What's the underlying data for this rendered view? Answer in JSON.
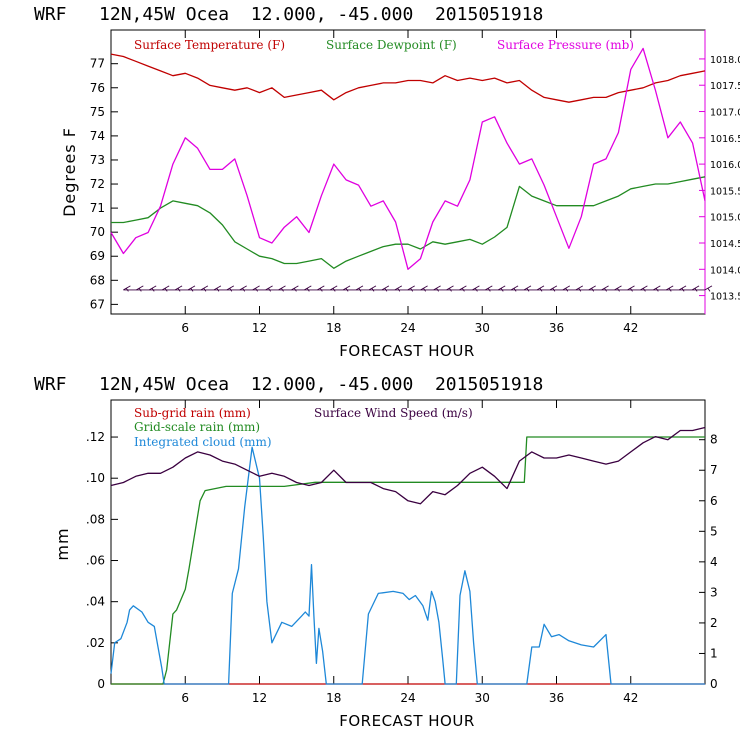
{
  "colors": {
    "temperature": "#c00000",
    "dewpoint": "#228b22",
    "pressure": "#e000e0",
    "subgrid_rain": "#c00000",
    "grid_rain": "#228b22",
    "cloud": "#1e88d8",
    "wind": "#3a0040",
    "axis": "#000000"
  },
  "chart_data": [
    {
      "type": "line",
      "header": "WRF   12N,45W Ocea  12.000, -45.000  2015051918",
      "xlabel": "FORECAST HOUR",
      "ylabel": "Degrees F",
      "xlim": [
        0,
        48
      ],
      "ylim": [
        66.6,
        78.4
      ],
      "xticks": [
        "6",
        "12",
        "18",
        "24",
        "30",
        "36",
        "42"
      ],
      "yticks": [
        "67",
        "68",
        "69",
        "70",
        "71",
        "72",
        "73",
        "74",
        "75",
        "76",
        "77"
      ],
      "y2lim": [
        1013.15,
        1018.55
      ],
      "y2ticks": [
        "1013.5",
        "1014.0",
        "1014.5",
        "1015.0",
        "1015.5",
        "1016.0",
        "1016.5",
        "1017.0",
        "1017.5",
        "1018.0"
      ],
      "series": [
        {
          "name": "Surface Temperature (F)",
          "axis": "left",
          "x": [
            0,
            1,
            2,
            3,
            4,
            5,
            6,
            7,
            8,
            9,
            10,
            11,
            12,
            13,
            14,
            15,
            16,
            17,
            18,
            19,
            20,
            21,
            22,
            23,
            24,
            25,
            26,
            27,
            28,
            29,
            30,
            31,
            32,
            33,
            34,
            35,
            36,
            37,
            38,
            39,
            40,
            41,
            42,
            43,
            44,
            45,
            46,
            47,
            48
          ],
          "y": [
            77.4,
            77.3,
            77.1,
            76.9,
            76.7,
            76.5,
            76.6,
            76.4,
            76.1,
            76.0,
            75.9,
            76.0,
            75.8,
            76.0,
            75.6,
            75.7,
            75.8,
            75.9,
            75.5,
            75.8,
            76.0,
            76.1,
            76.2,
            76.2,
            76.3,
            76.3,
            76.2,
            76.5,
            76.3,
            76.4,
            76.3,
            76.4,
            76.2,
            76.3,
            75.9,
            75.6,
            75.5,
            75.4,
            75.5,
            75.6,
            75.6,
            75.8,
            75.9,
            76.0,
            76.2,
            76.3,
            76.5,
            76.6,
            76.7
          ]
        },
        {
          "name": "Surface Dewpoint (F)",
          "axis": "left",
          "x": [
            0,
            1,
            2,
            3,
            4,
            5,
            6,
            7,
            8,
            9,
            10,
            11,
            12,
            13,
            14,
            15,
            16,
            17,
            18,
            19,
            20,
            21,
            22,
            23,
            24,
            25,
            26,
            27,
            28,
            29,
            30,
            31,
            32,
            33,
            34,
            35,
            36,
            37,
            38,
            39,
            40,
            41,
            42,
            43,
            44,
            45,
            46,
            47,
            48
          ],
          "y": [
            70.4,
            70.4,
            70.5,
            70.6,
            71.0,
            71.3,
            71.2,
            71.1,
            70.8,
            70.3,
            69.6,
            69.3,
            69.0,
            68.9,
            68.7,
            68.7,
            68.8,
            68.9,
            68.5,
            68.8,
            69.0,
            69.2,
            69.4,
            69.5,
            69.5,
            69.3,
            69.6,
            69.5,
            69.6,
            69.7,
            69.5,
            69.8,
            70.2,
            71.9,
            71.5,
            71.3,
            71.1,
            71.1,
            71.1,
            71.1,
            71.3,
            71.5,
            71.8,
            71.9,
            72.0,
            72.0,
            72.1,
            72.2,
            72.3
          ]
        },
        {
          "name": "Surface Pressure (mb)",
          "axis": "right",
          "x": [
            0,
            1,
            2,
            3,
            4,
            5,
            6,
            7,
            8,
            9,
            10,
            11,
            12,
            13,
            14,
            15,
            16,
            17,
            18,
            19,
            20,
            21,
            22,
            23,
            24,
            25,
            26,
            27,
            28,
            29,
            30,
            31,
            32,
            33,
            34,
            35,
            36,
            37,
            38,
            39,
            40,
            41,
            42,
            43,
            44,
            45,
            46,
            47,
            48
          ],
          "y": [
            1014.7,
            1014.3,
            1014.6,
            1014.7,
            1015.2,
            1016.0,
            1016.5,
            1016.3,
            1015.9,
            1015.9,
            1016.1,
            1015.4,
            1014.6,
            1014.5,
            1014.8,
            1015.0,
            1014.7,
            1015.4,
            1016.0,
            1015.7,
            1015.6,
            1015.2,
            1015.3,
            1014.9,
            1014.0,
            1014.2,
            1014.9,
            1015.3,
            1015.2,
            1015.7,
            1016.8,
            1016.9,
            1016.4,
            1016.0,
            1016.1,
            1015.6,
            1015.0,
            1014.4,
            1015.0,
            1016.0,
            1016.1,
            1016.6,
            1017.8,
            1018.2,
            1017.4,
            1016.5,
            1016.8,
            1016.4,
            1015.3
          ]
        }
      ],
      "wind_barbs": {
        "x_start": 1,
        "x_end": 48,
        "y_level": 67.6,
        "count": 46
      }
    },
    {
      "type": "line",
      "header": "WRF   12N,45W Ocea  12.000, -45.000  2015051918",
      "xlabel": "FORECAST HOUR",
      "ylabel": "mm",
      "xlim": [
        0,
        48
      ],
      "ylim": [
        0,
        0.138
      ],
      "xticks": [
        "6",
        "12",
        "18",
        "24",
        "30",
        "36",
        "42"
      ],
      "yticks": [
        "0",
        ".02",
        ".04",
        ".06",
        ".08",
        ".10",
        ".12"
      ],
      "y2lim": [
        0,
        9.3
      ],
      "y2ticks": [
        "0",
        "1",
        "2",
        "3",
        "4",
        "5",
        "6",
        "7",
        "8"
      ],
      "series": [
        {
          "name": "Sub-grid rain (mm)",
          "axis": "left",
          "x": [
            0,
            48
          ],
          "y": [
            0,
            0
          ]
        },
        {
          "name": "Grid-scale rain (mm)",
          "axis": "left",
          "x": [
            0,
            4.2,
            4.5,
            5.0,
            5.3,
            6.0,
            6.3,
            6.9,
            7.2,
            7.6,
            9.3,
            14.0,
            16.5,
            33.4,
            33.6,
            48
          ],
          "y": [
            0,
            0,
            0.007,
            0.034,
            0.036,
            0.046,
            0.056,
            0.078,
            0.089,
            0.094,
            0.096,
            0.096,
            0.098,
            0.098,
            0.12,
            0.12
          ]
        },
        {
          "name": "Integrated cloud (mm)",
          "axis": "left",
          "x": [
            0,
            0.3,
            0.8,
            1.3,
            1.5,
            1.8,
            2.5,
            3.0,
            3.5,
            3.8,
            4.1,
            4.3,
            9.5,
            9.8,
            10.3,
            10.8,
            11.4,
            12.0,
            12.3,
            12.6,
            13.0,
            13.8,
            14.6,
            15.4,
            15.7,
            16.0,
            16.2,
            16.4,
            16.6,
            16.8,
            17.1,
            17.4,
            20.3,
            20.8,
            21.6,
            22.8,
            23.6,
            24.1,
            24.6,
            25.2,
            25.6,
            25.9,
            26.2,
            26.5,
            26.8,
            27.0,
            27.9,
            28.2,
            28.6,
            29.0,
            29.3,
            29.6,
            33.6,
            34.0,
            34.6,
            35.0,
            35.6,
            36.2,
            37.0,
            38.0,
            39.0,
            40.0,
            40.4,
            48
          ],
          "y": [
            0.005,
            0.02,
            0.022,
            0.03,
            0.036,
            0.038,
            0.035,
            0.03,
            0.028,
            0.018,
            0.008,
            0,
            0,
            0.044,
            0.056,
            0.086,
            0.115,
            0.1,
            0.072,
            0.04,
            0.02,
            0.03,
            0.028,
            0.033,
            0.035,
            0.033,
            0.058,
            0.033,
            0.01,
            0.027,
            0.016,
            0,
            0,
            0.034,
            0.044,
            0.045,
            0.044,
            0.041,
            0.043,
            0.038,
            0.031,
            0.045,
            0.04,
            0.03,
            0.012,
            0,
            0,
            0.043,
            0.055,
            0.045,
            0.02,
            0,
            0,
            0.018,
            0.018,
            0.029,
            0.023,
            0.024,
            0.021,
            0.019,
            0.018,
            0.024,
            0,
            0
          ]
        },
        {
          "name": "Surface Wind Speed (m/s)",
          "axis": "right",
          "x": [
            0,
            1,
            2,
            3,
            4,
            5,
            6,
            7,
            8,
            9,
            10,
            11,
            12,
            13,
            14,
            15,
            16,
            17,
            18,
            19,
            20,
            21,
            22,
            23,
            24,
            25,
            26,
            27,
            28,
            29,
            30,
            31,
            32,
            33,
            34,
            35,
            36,
            37,
            38,
            39,
            40,
            41,
            42,
            43,
            44,
            45,
            46,
            47,
            48
          ],
          "y": [
            6.5,
            6.6,
            6.8,
            6.9,
            6.9,
            7.1,
            7.4,
            7.6,
            7.5,
            7.3,
            7.2,
            7.0,
            6.8,
            6.9,
            6.8,
            6.6,
            6.5,
            6.6,
            7.0,
            6.6,
            6.6,
            6.6,
            6.4,
            6.3,
            6.0,
            5.9,
            6.3,
            6.2,
            6.5,
            6.9,
            7.1,
            6.8,
            6.4,
            7.3,
            7.6,
            7.4,
            7.4,
            7.5,
            7.4,
            7.3,
            7.2,
            7.3,
            7.6,
            7.9,
            8.1,
            8.0,
            8.3,
            8.3,
            8.4
          ]
        }
      ]
    }
  ]
}
